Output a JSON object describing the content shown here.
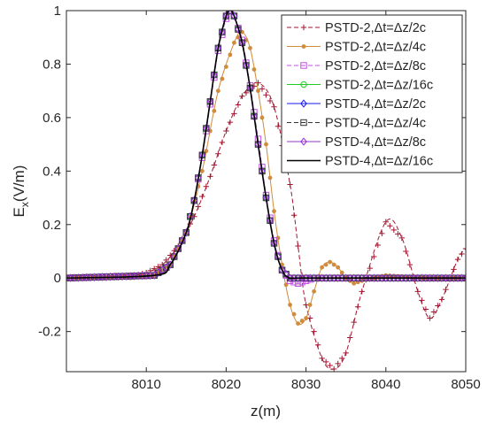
{
  "chart_data": {
    "type": "line",
    "xlabel": "z(m)",
    "ylabel_main": "E",
    "ylabel_sub": "x",
    "ylabel_unit": "(V/m)",
    "xlim": [
      8000,
      8050
    ],
    "ylim": [
      -0.35,
      1.0
    ],
    "xticks": [
      8010,
      8020,
      8030,
      8040,
      8050
    ],
    "yticks": [
      -0.2,
      0,
      0.2,
      0.4,
      0.6,
      0.8,
      1
    ],
    "xtick_labels": [
      "8010",
      "8020",
      "8030",
      "8040",
      "8050"
    ],
    "ytick_labels": [
      "-0.2",
      "0",
      "0.2",
      "0.4",
      "0.6",
      "0.8",
      "1"
    ],
    "grid": false,
    "legend_position": "top-right",
    "series": [
      {
        "name": "PSTD-2,Δt=Δz/2c",
        "color": "#a2142f",
        "dash": "dashed",
        "marker": "plus",
        "x": [
          8000,
          8005,
          8008,
          8010,
          8012,
          8014,
          8016,
          8018,
          8020,
          8022,
          8024,
          8026,
          8028,
          8029,
          8030,
          8032,
          8033.5,
          8035,
          8037,
          8040,
          8042,
          8044,
          8045.5,
          8047,
          8049,
          8050
        ],
        "y": [
          0,
          0,
          0.005,
          0.02,
          0.05,
          0.12,
          0.23,
          0.38,
          0.55,
          0.68,
          0.73,
          0.64,
          0.35,
          0.12,
          -0.1,
          -0.3,
          -0.34,
          -0.28,
          -0.05,
          0.21,
          0.15,
          -0.05,
          -0.15,
          -0.08,
          0.07,
          0.11
        ]
      },
      {
        "name": "PSTD-2,Δt=Δz/4c",
        "color": "#d08c3c",
        "dash": "solid",
        "marker": "dot",
        "x": [
          8000,
          8008,
          8011,
          8013,
          8015,
          8017,
          8019,
          8021,
          8022,
          8023,
          8024,
          8025,
          8026,
          8027,
          8028,
          8029,
          8030,
          8031,
          8032,
          8033,
          8034,
          8035,
          8036,
          8037,
          8040,
          8045,
          8050
        ],
        "y": [
          0,
          0,
          0.01,
          0.05,
          0.17,
          0.4,
          0.7,
          0.88,
          0.92,
          0.86,
          0.7,
          0.5,
          0.25,
          0.05,
          -0.1,
          -0.17,
          -0.15,
          -0.05,
          0.04,
          0.06,
          0.04,
          0,
          -0.02,
          -0.01,
          0.01,
          0,
          0
        ]
      },
      {
        "name": "PSTD-2,Δt=Δz/8c",
        "color": "#c050e0",
        "dash": "dashed",
        "marker": "square",
        "x": [
          8000,
          8011,
          8013,
          8015,
          8016,
          8017,
          8018,
          8019,
          8020,
          8020.5,
          8021,
          8022,
          8023,
          8024,
          8025,
          8026,
          8027,
          8028,
          8029,
          8030,
          8031,
          8050
        ],
        "y": [
          0,
          0.01,
          0.05,
          0.17,
          0.29,
          0.45,
          0.65,
          0.85,
          0.97,
          1.0,
          0.98,
          0.89,
          0.72,
          0.52,
          0.31,
          0.14,
          0.03,
          -0.01,
          -0.02,
          -0.01,
          0,
          0
        ]
      },
      {
        "name": "PSTD-2,Δt=Δz/16c",
        "color": "#22cc22",
        "dash": "solid",
        "marker": "circle",
        "x": [
          8000,
          8011,
          8013,
          8015,
          8016,
          8017,
          8018,
          8019,
          8020,
          8020.5,
          8021,
          8022,
          8023,
          8024,
          8025,
          8026,
          8027,
          8028,
          8030,
          8050
        ],
        "y": [
          0,
          0.01,
          0.05,
          0.17,
          0.29,
          0.46,
          0.66,
          0.86,
          0.98,
          1.0,
          0.98,
          0.88,
          0.71,
          0.5,
          0.3,
          0.13,
          0.03,
          0,
          0,
          0
        ]
      },
      {
        "name": "PSTD-4,Δt=Δz/2c",
        "color": "#1a1aee",
        "dash": "solid",
        "marker": "diamond",
        "x": [
          8000,
          8011,
          8013,
          8015,
          8016,
          8017,
          8018,
          8019,
          8020,
          8020.5,
          8021,
          8022,
          8023,
          8024,
          8025,
          8026,
          8027,
          8028,
          8030,
          8050
        ],
        "y": [
          0,
          0.01,
          0.05,
          0.17,
          0.29,
          0.46,
          0.66,
          0.86,
          0.98,
          1.0,
          0.98,
          0.88,
          0.71,
          0.5,
          0.3,
          0.13,
          0.03,
          0,
          0,
          0
        ]
      },
      {
        "name": "PSTD-4,Δt=Δz/4c",
        "color": "#333333",
        "dash": "dashed",
        "marker": "square",
        "x": [
          8000,
          8011,
          8013,
          8015,
          8016,
          8017,
          8018,
          8019,
          8020,
          8020.5,
          8021,
          8022,
          8023,
          8024,
          8025,
          8026,
          8027,
          8028,
          8030,
          8050
        ],
        "y": [
          0,
          0.01,
          0.05,
          0.17,
          0.29,
          0.46,
          0.66,
          0.86,
          0.98,
          1.0,
          0.98,
          0.88,
          0.71,
          0.5,
          0.3,
          0.13,
          0.03,
          0,
          0,
          0
        ]
      },
      {
        "name": "PSTD-4,Δt=Δz/8c",
        "color": "#9933cc",
        "dash": "solid",
        "marker": "diamond",
        "x": [
          8000,
          8011,
          8013,
          8015,
          8016,
          8017,
          8018,
          8019,
          8020,
          8020.5,
          8021,
          8022,
          8023,
          8024,
          8025,
          8026,
          8027,
          8028,
          8030,
          8050
        ],
        "y": [
          0,
          0.01,
          0.05,
          0.17,
          0.29,
          0.46,
          0.66,
          0.86,
          0.98,
          1.0,
          0.98,
          0.88,
          0.71,
          0.5,
          0.3,
          0.13,
          0.03,
          0,
          0,
          0
        ]
      },
      {
        "name": "PSTD-4,Δt=Δz/16c",
        "color": "#000000",
        "dash": "solid",
        "marker": "none",
        "x": [
          8000,
          8011,
          8013,
          8015,
          8016,
          8017,
          8018,
          8019,
          8020,
          8020.5,
          8021,
          8022,
          8023,
          8024,
          8025,
          8026,
          8027,
          8028,
          8030,
          8050
        ],
        "y": [
          0,
          0.01,
          0.05,
          0.17,
          0.29,
          0.46,
          0.66,
          0.86,
          0.98,
          1.0,
          0.98,
          0.88,
          0.71,
          0.5,
          0.3,
          0.13,
          0.03,
          0,
          0,
          0
        ]
      }
    ]
  }
}
